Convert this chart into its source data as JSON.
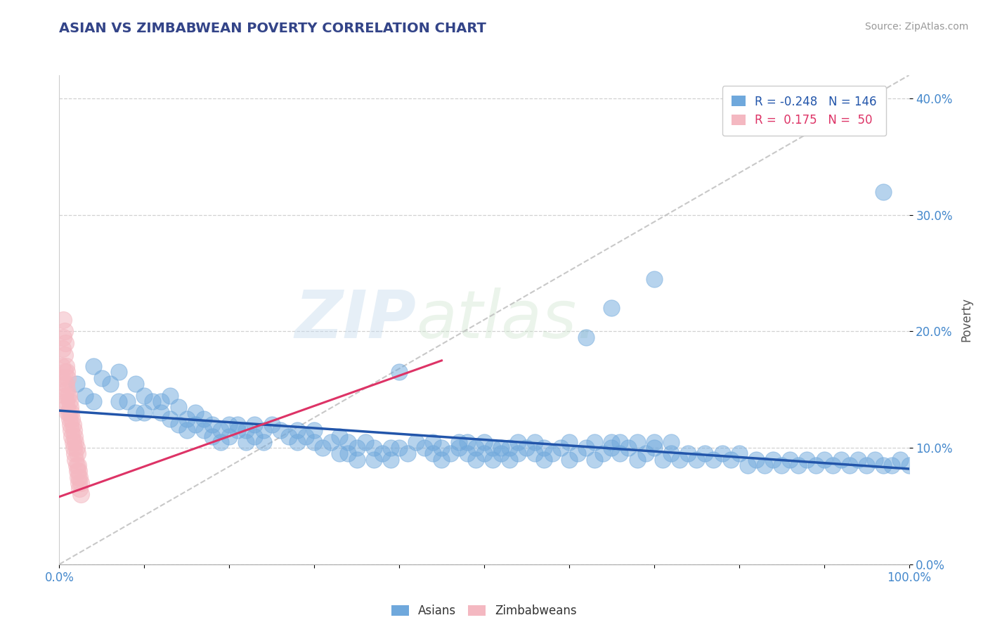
{
  "title": "ASIAN VS ZIMBABWEAN POVERTY CORRELATION CHART",
  "source": "Source: ZipAtlas.com",
  "ylabel": "Poverty",
  "xlim": [
    0,
    1
  ],
  "ylim": [
    0.0,
    0.42
  ],
  "yticks": [
    0.0,
    0.1,
    0.2,
    0.3,
    0.4
  ],
  "ytick_labels": [
    "0.0%",
    "10.0%",
    "20.0%",
    "30.0%",
    "40.0%"
  ],
  "xticks": [
    0.0,
    0.1,
    0.2,
    0.3,
    0.4,
    0.5,
    0.6,
    0.7,
    0.8,
    0.9,
    1.0
  ],
  "xtick_labels_show": [
    "0.0%",
    "100.0%"
  ],
  "asian_color": "#6fa8dc",
  "zim_color": "#f4b8c1",
  "asian_line_color": "#2255aa",
  "zim_line_color": "#dd3366",
  "ref_line_color": "#bbbbbb",
  "watermark_color": "#d5e8f5",
  "watermark": "ZIPatlas.",
  "legend_R_asian": "-0.248",
  "legend_N_asian": "146",
  "legend_R_zim": " 0.175",
  "legend_N_zim": " 50",
  "asian_line_x0": 0.0,
  "asian_line_y0": 0.132,
  "asian_line_x1": 1.0,
  "asian_line_y1": 0.082,
  "zim_line_x0": 0.0,
  "zim_line_y0": 0.058,
  "zim_line_x1": 0.45,
  "zim_line_y1": 0.175,
  "ref_line_x0": 0.0,
  "ref_line_y0": 0.0,
  "ref_line_x1": 1.0,
  "ref_line_y1": 0.42,
  "asian_scatter": [
    [
      0.02,
      0.155
    ],
    [
      0.03,
      0.145
    ],
    [
      0.04,
      0.14
    ],
    [
      0.04,
      0.17
    ],
    [
      0.05,
      0.16
    ],
    [
      0.06,
      0.155
    ],
    [
      0.07,
      0.14
    ],
    [
      0.07,
      0.165
    ],
    [
      0.08,
      0.14
    ],
    [
      0.09,
      0.13
    ],
    [
      0.09,
      0.155
    ],
    [
      0.1,
      0.145
    ],
    [
      0.1,
      0.13
    ],
    [
      0.11,
      0.14
    ],
    [
      0.12,
      0.14
    ],
    [
      0.12,
      0.13
    ],
    [
      0.13,
      0.145
    ],
    [
      0.13,
      0.125
    ],
    [
      0.14,
      0.135
    ],
    [
      0.14,
      0.12
    ],
    [
      0.15,
      0.125
    ],
    [
      0.15,
      0.115
    ],
    [
      0.16,
      0.13
    ],
    [
      0.16,
      0.12
    ],
    [
      0.17,
      0.125
    ],
    [
      0.17,
      0.115
    ],
    [
      0.18,
      0.12
    ],
    [
      0.18,
      0.11
    ],
    [
      0.19,
      0.115
    ],
    [
      0.19,
      0.105
    ],
    [
      0.2,
      0.12
    ],
    [
      0.2,
      0.11
    ],
    [
      0.21,
      0.12
    ],
    [
      0.21,
      0.115
    ],
    [
      0.22,
      0.115
    ],
    [
      0.22,
      0.105
    ],
    [
      0.23,
      0.12
    ],
    [
      0.23,
      0.11
    ],
    [
      0.24,
      0.115
    ],
    [
      0.24,
      0.105
    ],
    [
      0.25,
      0.12
    ],
    [
      0.26,
      0.115
    ],
    [
      0.27,
      0.11
    ],
    [
      0.28,
      0.115
    ],
    [
      0.28,
      0.105
    ],
    [
      0.29,
      0.11
    ],
    [
      0.3,
      0.105
    ],
    [
      0.3,
      0.115
    ],
    [
      0.31,
      0.1
    ],
    [
      0.32,
      0.105
    ],
    [
      0.33,
      0.11
    ],
    [
      0.33,
      0.095
    ],
    [
      0.34,
      0.105
    ],
    [
      0.34,
      0.095
    ],
    [
      0.35,
      0.1
    ],
    [
      0.35,
      0.09
    ],
    [
      0.36,
      0.105
    ],
    [
      0.37,
      0.1
    ],
    [
      0.37,
      0.09
    ],
    [
      0.38,
      0.095
    ],
    [
      0.39,
      0.1
    ],
    [
      0.39,
      0.09
    ],
    [
      0.4,
      0.165
    ],
    [
      0.4,
      0.1
    ],
    [
      0.41,
      0.095
    ],
    [
      0.42,
      0.105
    ],
    [
      0.43,
      0.1
    ],
    [
      0.44,
      0.095
    ],
    [
      0.44,
      0.105
    ],
    [
      0.45,
      0.1
    ],
    [
      0.45,
      0.09
    ],
    [
      0.46,
      0.095
    ],
    [
      0.47,
      0.105
    ],
    [
      0.47,
      0.1
    ],
    [
      0.48,
      0.095
    ],
    [
      0.48,
      0.105
    ],
    [
      0.49,
      0.1
    ],
    [
      0.49,
      0.09
    ],
    [
      0.5,
      0.095
    ],
    [
      0.5,
      0.105
    ],
    [
      0.51,
      0.1
    ],
    [
      0.51,
      0.09
    ],
    [
      0.52,
      0.1
    ],
    [
      0.52,
      0.095
    ],
    [
      0.53,
      0.1
    ],
    [
      0.53,
      0.09
    ],
    [
      0.54,
      0.095
    ],
    [
      0.54,
      0.105
    ],
    [
      0.55,
      0.1
    ],
    [
      0.56,
      0.095
    ],
    [
      0.56,
      0.105
    ],
    [
      0.57,
      0.1
    ],
    [
      0.57,
      0.09
    ],
    [
      0.58,
      0.095
    ],
    [
      0.59,
      0.1
    ],
    [
      0.6,
      0.105
    ],
    [
      0.6,
      0.09
    ],
    [
      0.61,
      0.095
    ],
    [
      0.62,
      0.1
    ],
    [
      0.63,
      0.105
    ],
    [
      0.63,
      0.09
    ],
    [
      0.64,
      0.095
    ],
    [
      0.65,
      0.1
    ],
    [
      0.65,
      0.105
    ],
    [
      0.66,
      0.095
    ],
    [
      0.66,
      0.105
    ],
    [
      0.67,
      0.1
    ],
    [
      0.68,
      0.105
    ],
    [
      0.68,
      0.09
    ],
    [
      0.69,
      0.095
    ],
    [
      0.7,
      0.1
    ],
    [
      0.7,
      0.105
    ],
    [
      0.71,
      0.09
    ],
    [
      0.72,
      0.095
    ],
    [
      0.72,
      0.105
    ],
    [
      0.73,
      0.09
    ],
    [
      0.74,
      0.095
    ],
    [
      0.75,
      0.09
    ],
    [
      0.76,
      0.095
    ],
    [
      0.77,
      0.09
    ],
    [
      0.78,
      0.095
    ],
    [
      0.79,
      0.09
    ],
    [
      0.8,
      0.095
    ],
    [
      0.81,
      0.085
    ],
    [
      0.82,
      0.09
    ],
    [
      0.83,
      0.085
    ],
    [
      0.84,
      0.09
    ],
    [
      0.85,
      0.085
    ],
    [
      0.86,
      0.09
    ],
    [
      0.87,
      0.085
    ],
    [
      0.88,
      0.09
    ],
    [
      0.89,
      0.085
    ],
    [
      0.9,
      0.09
    ],
    [
      0.91,
      0.085
    ],
    [
      0.92,
      0.09
    ],
    [
      0.93,
      0.085
    ],
    [
      0.94,
      0.09
    ],
    [
      0.95,
      0.085
    ],
    [
      0.96,
      0.09
    ],
    [
      0.97,
      0.085
    ],
    [
      0.98,
      0.085
    ],
    [
      0.99,
      0.09
    ],
    [
      1.0,
      0.085
    ],
    [
      0.62,
      0.195
    ],
    [
      0.65,
      0.22
    ],
    [
      0.7,
      0.245
    ],
    [
      0.97,
      0.32
    ]
  ],
  "zim_scatter": [
    [
      0.005,
      0.195
    ],
    [
      0.006,
      0.18
    ],
    [
      0.006,
      0.165
    ],
    [
      0.007,
      0.155
    ],
    [
      0.007,
      0.145
    ],
    [
      0.008,
      0.17
    ],
    [
      0.008,
      0.155
    ],
    [
      0.008,
      0.14
    ],
    [
      0.009,
      0.165
    ],
    [
      0.009,
      0.15
    ],
    [
      0.009,
      0.135
    ],
    [
      0.01,
      0.16
    ],
    [
      0.01,
      0.145
    ],
    [
      0.01,
      0.13
    ],
    [
      0.011,
      0.145
    ],
    [
      0.011,
      0.13
    ],
    [
      0.012,
      0.14
    ],
    [
      0.012,
      0.125
    ],
    [
      0.013,
      0.135
    ],
    [
      0.013,
      0.12
    ],
    [
      0.014,
      0.13
    ],
    [
      0.014,
      0.115
    ],
    [
      0.015,
      0.125
    ],
    [
      0.015,
      0.11
    ],
    [
      0.016,
      0.12
    ],
    [
      0.016,
      0.105
    ],
    [
      0.017,
      0.115
    ],
    [
      0.017,
      0.1
    ],
    [
      0.018,
      0.11
    ],
    [
      0.018,
      0.095
    ],
    [
      0.019,
      0.105
    ],
    [
      0.019,
      0.09
    ],
    [
      0.02,
      0.1
    ],
    [
      0.02,
      0.085
    ],
    [
      0.021,
      0.095
    ],
    [
      0.021,
      0.08
    ],
    [
      0.022,
      0.085
    ],
    [
      0.022,
      0.075
    ],
    [
      0.023,
      0.08
    ],
    [
      0.023,
      0.07
    ],
    [
      0.024,
      0.075
    ],
    [
      0.024,
      0.065
    ],
    [
      0.025,
      0.07
    ],
    [
      0.025,
      0.06
    ],
    [
      0.005,
      0.21
    ],
    [
      0.006,
      0.2
    ],
    [
      0.007,
      0.19
    ],
    [
      0.004,
      0.185
    ],
    [
      0.003,
      0.17
    ],
    [
      0.003,
      0.16
    ]
  ],
  "background_color": "#ffffff",
  "grid_color": "#cccccc",
  "tick_color": "#4488cc",
  "title_color": "#334488",
  "source_color": "#999999",
  "label_color": "#555555"
}
